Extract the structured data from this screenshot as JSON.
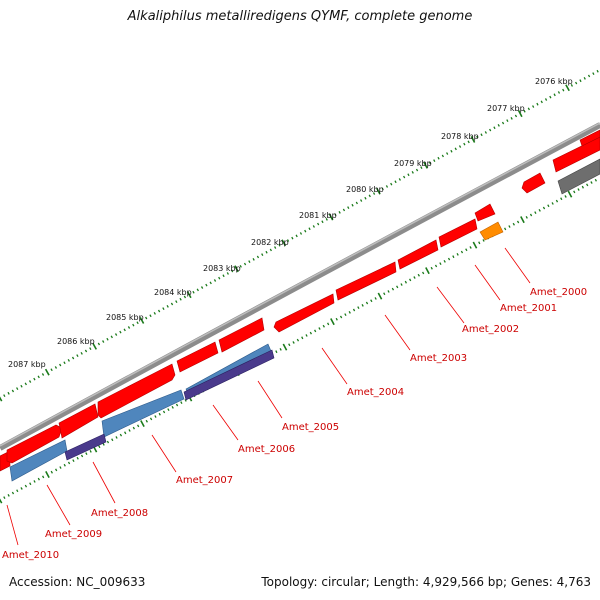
{
  "title": "Alkaliphilus metalliredigens QYMF, complete genome",
  "footer": {
    "accession": "Accession: NC_009633",
    "summary": "Topology: circular; Length: 4,929,566 bp; Genes: 4,763"
  },
  "colors": {
    "backbone": "#8c8c8c",
    "forward_gene": "#ff0000",
    "blue_feature": "#4f86bd",
    "purple_feature": "#4a3a8c",
    "orange_feature": "#ff8c00",
    "gray_feature": "#6e6e6e",
    "tick": "#1a7a1a",
    "label": "#cc0000"
  },
  "scale_labels": [
    "2076 kbp",
    "2077 kbp",
    "2078 kbp",
    "2079 kbp",
    "2080 kbp",
    "2081 kbp",
    "2082 kbp",
    "2083 kbp",
    "2084 kbp",
    "2085 kbp",
    "2086 kbp",
    "2087 kbp"
  ],
  "gene_labels": [
    "Amet_2000",
    "Amet_2001",
    "Amet_2002",
    "Amet_2003",
    "Amet_2004",
    "Amet_2005",
    "Amet_2006",
    "Amet_2007",
    "Amet_2008",
    "Amet_2009",
    "Amet_2010"
  ]
}
